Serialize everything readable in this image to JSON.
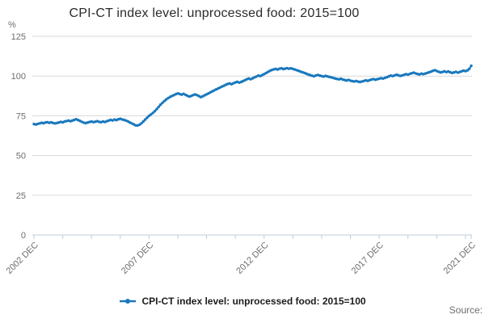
{
  "chart_data": {
    "type": "line",
    "title": "CPI-CT index level: unprocessed food: 2015=100",
    "unit_label": "%",
    "ylim": [
      0,
      125
    ],
    "y_ticks": [
      0,
      25,
      50,
      75,
      100,
      125
    ],
    "grid": "horizontal",
    "x_tick_labels": [
      "2002 DEC",
      "2007 DEC",
      "2012 DEC",
      "2017 DEC",
      "2021 DEC"
    ],
    "x_tick_label_month_indices": [
      0,
      60,
      120,
      180,
      228
    ],
    "x_minor_tick_every_months": 15,
    "x_label_rotation_deg": -45,
    "frequency": "monthly",
    "x_range": {
      "start": "2002 DEC",
      "end": "2021 DEC"
    },
    "legend_position": "bottom-center",
    "colors": {
      "grid": "#d9d9d9",
      "axis": "#c1ccd9",
      "tick_text": "#6e6e6e",
      "title_text": "#2b2b2b"
    },
    "series": [
      {
        "name": "CPI-CT index level: unprocessed food: 2015=100",
        "color": "#1878be",
        "marker": "circle",
        "values": [
          69.8,
          69.5,
          69.9,
          70.2,
          70.6,
          70.3,
          70.8,
          71.0,
          70.6,
          70.9,
          70.5,
          70.2,
          70.5,
          70.8,
          71.2,
          70.9,
          71.4,
          71.7,
          72.0,
          71.6,
          72.0,
          72.4,
          72.8,
          72.3,
          71.8,
          71.2,
          70.7,
          70.4,
          70.8,
          71.1,
          71.4,
          71.0,
          71.3,
          71.6,
          71.2,
          71.0,
          71.4,
          71.1,
          71.6,
          72.0,
          72.4,
          72.1,
          72.6,
          72.3,
          72.8,
          73.1,
          72.7,
          72.4,
          72.0,
          71.5,
          70.8,
          70.2,
          69.6,
          69.0,
          68.9,
          69.4,
          70.2,
          71.4,
          72.6,
          73.8,
          75.0,
          75.8,
          76.8,
          77.9,
          79.2,
          80.6,
          82.0,
          83.2,
          84.3,
          85.3,
          86.2,
          86.9,
          87.5,
          88.0,
          88.6,
          89.1,
          88.7,
          88.3,
          88.8,
          88.2,
          87.6,
          87.1,
          87.5,
          88.0,
          88.4,
          88.0,
          87.4,
          86.8,
          87.3,
          87.9,
          88.5,
          89.1,
          89.8,
          90.4,
          91.0,
          91.6,
          92.2,
          92.8,
          93.4,
          93.9,
          94.5,
          95.0,
          95.4,
          94.9,
          95.5,
          96.0,
          96.4,
          95.9,
          96.3,
          96.8,
          97.4,
          98.0,
          98.5,
          98.0,
          98.6,
          99.2,
          99.7,
          100.3,
          100.0,
          100.6,
          101.2,
          101.9,
          102.6,
          103.3,
          103.8,
          104.2,
          104.5,
          104.1,
          104.6,
          104.9,
          104.4,
          104.7,
          105.0,
          104.6,
          104.9,
          104.5,
          104.1,
          103.7,
          103.3,
          102.8,
          102.4,
          102.0,
          101.5,
          101.0,
          100.6,
          100.2,
          99.9,
          100.4,
          100.7,
          100.3,
          100.0,
          99.7,
          100.1,
          99.8,
          99.5,
          99.2,
          98.9,
          98.5,
          98.2,
          97.9,
          98.3,
          97.8,
          97.5,
          97.2,
          97.6,
          97.1,
          96.8,
          96.6,
          96.9,
          96.5,
          96.3,
          96.6,
          96.9,
          97.3,
          97.0,
          97.4,
          97.8,
          98.1,
          97.7,
          98.0,
          98.3,
          98.7,
          98.4,
          98.9,
          99.3,
          99.8,
          100.3,
          100.0,
          100.4,
          100.8,
          100.5,
          100.1,
          100.4,
          100.8,
          101.2,
          100.9,
          101.4,
          101.8,
          102.2,
          101.7,
          101.3,
          101.0,
          101.5,
          101.2,
          101.6,
          102.0,
          102.4,
          102.8,
          103.3,
          103.7,
          103.2,
          102.7,
          102.3,
          102.6,
          103.0,
          102.5,
          102.9,
          102.4,
          102.0,
          102.3,
          102.7,
          102.2,
          102.6,
          103.0,
          103.4,
          103.1,
          103.6,
          104.5,
          106.5
        ]
      }
    ]
  },
  "legend": {
    "label": "CPI-CT index level: unprocessed food: 2015=100"
  },
  "source_label": "Source:"
}
